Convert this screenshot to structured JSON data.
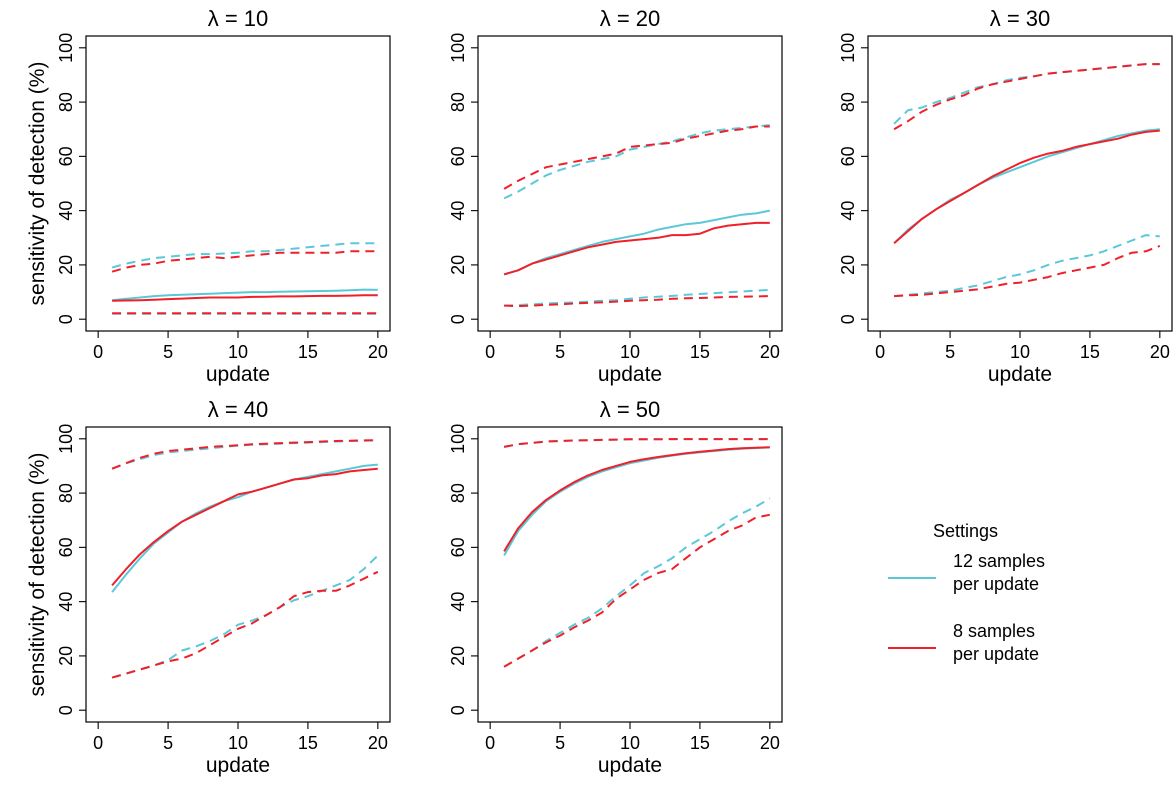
{
  "chart_data": [
    {
      "type": "line",
      "title": "λ = 10",
      "xlabel": "update",
      "ylabel": "sensitivity of detection (%)",
      "xlim": [
        0,
        20
      ],
      "ylim": [
        0,
        100
      ],
      "xticks": [
        0,
        5,
        10,
        15,
        20
      ],
      "yticks": [
        0,
        20,
        40,
        60,
        80,
        100
      ],
      "x": [
        1,
        2,
        3,
        4,
        5,
        6,
        7,
        8,
        9,
        10,
        11,
        12,
        13,
        14,
        15,
        16,
        17,
        18,
        19,
        20
      ],
      "series": [
        {
          "group": "12 samples per update",
          "role": "mean",
          "values": [
            7,
            7.5,
            8,
            8.5,
            8.8,
            9,
            9.2,
            9.4,
            9.6,
            9.8,
            10,
            10,
            10.1,
            10.2,
            10.3,
            10.4,
            10.5,
            10.7,
            10.9,
            10.8
          ]
        },
        {
          "group": "12 samples per update",
          "role": "upper",
          "values": [
            19,
            20.5,
            21.5,
            22.5,
            23,
            23.5,
            24,
            24,
            24.2,
            24.5,
            25,
            25,
            25.5,
            26,
            26.5,
            27,
            27.5,
            28,
            28,
            28
          ]
        },
        {
          "group": "12 samples per update",
          "role": "lower",
          "values": [
            2,
            2,
            2,
            2,
            2,
            2,
            2,
            2,
            2,
            2,
            2,
            2,
            2,
            2,
            2,
            2,
            2,
            2,
            2,
            2
          ]
        },
        {
          "group": "8 samples per update",
          "role": "mean",
          "values": [
            6.8,
            6.9,
            7,
            7.2,
            7.4,
            7.6,
            7.8,
            8,
            8,
            8,
            8.2,
            8.3,
            8.4,
            8.4,
            8.5,
            8.6,
            8.6,
            8.7,
            8.8,
            8.8
          ]
        },
        {
          "group": "8 samples per update",
          "role": "upper",
          "values": [
            17.5,
            19,
            20,
            20.5,
            21.5,
            22,
            22.5,
            23,
            22.5,
            23,
            23.5,
            24,
            24.5,
            24.5,
            24.5,
            24.5,
            24.5,
            25,
            25,
            25
          ]
        },
        {
          "group": "8 samples per update",
          "role": "lower",
          "values": [
            2.2,
            2.2,
            2.2,
            2.2,
            2.2,
            2.2,
            2.2,
            2.2,
            2.2,
            2.2,
            2.2,
            2.2,
            2.2,
            2.2,
            2.2,
            2.2,
            2.2,
            2.2,
            2.2,
            2.2
          ]
        }
      ]
    },
    {
      "type": "line",
      "title": "λ = 20",
      "xlabel": "update",
      "ylabel": "",
      "xlim": [
        0,
        20
      ],
      "ylim": [
        0,
        100
      ],
      "xticks": [
        0,
        5,
        10,
        15,
        20
      ],
      "yticks": [
        0,
        20,
        40,
        60,
        80,
        100
      ],
      "x": [
        1,
        2,
        3,
        4,
        5,
        6,
        7,
        8,
        9,
        10,
        11,
        12,
        13,
        14,
        15,
        16,
        17,
        18,
        19,
        20
      ],
      "series": [
        {
          "group": "12 samples per update",
          "role": "mean",
          "values": [
            16.5,
            18,
            20.5,
            22.5,
            24,
            25.5,
            27,
            28.5,
            29.5,
            30.5,
            31.5,
            33,
            34,
            35,
            35.5,
            36.5,
            37.5,
            38.5,
            39,
            40
          ]
        },
        {
          "group": "12 samples per update",
          "role": "upper",
          "values": [
            44.5,
            47,
            50,
            53,
            55,
            56.5,
            58,
            59,
            60,
            62.5,
            63.5,
            64.5,
            65.5,
            67,
            68.5,
            69.5,
            70,
            70.5,
            71,
            71.5
          ]
        },
        {
          "group": "12 samples per update",
          "role": "lower",
          "values": [
            5,
            5.2,
            5.5,
            5.8,
            6,
            6.2,
            6.5,
            6.8,
            7,
            7.5,
            8,
            8.3,
            8.6,
            9,
            9.3,
            9.6,
            9.9,
            10.2,
            10.5,
            10.8
          ]
        },
        {
          "group": "8 samples per update",
          "role": "mean",
          "values": [
            16.5,
            18,
            20.5,
            22,
            23.5,
            25,
            26.5,
            27.5,
            28.5,
            29,
            29.5,
            30,
            31,
            31,
            31.5,
            33.5,
            34.5,
            35,
            35.5,
            35.5
          ]
        },
        {
          "group": "8 samples per update",
          "role": "upper",
          "values": [
            48,
            51,
            53.5,
            56,
            57,
            58,
            59,
            60,
            61,
            63.5,
            64,
            64.5,
            65,
            66.5,
            67.5,
            68.5,
            69.5,
            70,
            71,
            71
          ]
        },
        {
          "group": "8 samples per update",
          "role": "lower",
          "values": [
            5,
            4.8,
            5,
            5.3,
            5.5,
            5.8,
            6,
            6.2,
            6.5,
            6.8,
            7,
            7.2,
            7.5,
            7.7,
            7.8,
            8,
            8.2,
            8.3,
            8.4,
            8.5
          ]
        }
      ]
    },
    {
      "type": "line",
      "title": "λ = 30",
      "xlabel": "update",
      "ylabel": "",
      "xlim": [
        0,
        20
      ],
      "ylim": [
        0,
        100
      ],
      "xticks": [
        0,
        5,
        10,
        15,
        20
      ],
      "yticks": [
        0,
        20,
        40,
        60,
        80,
        100
      ],
      "x": [
        1,
        2,
        3,
        4,
        5,
        6,
        7,
        8,
        9,
        10,
        11,
        12,
        13,
        14,
        15,
        16,
        17,
        18,
        19,
        20
      ],
      "series": [
        {
          "group": "12 samples per update",
          "role": "mean",
          "values": [
            28,
            33,
            37,
            40.5,
            44,
            46.5,
            49.5,
            52,
            54,
            56,
            58,
            60,
            61.5,
            63,
            64.5,
            66,
            67.5,
            68.5,
            69.5,
            70
          ]
        },
        {
          "group": "12 samples per update",
          "role": "upper",
          "values": [
            72,
            77,
            78,
            80,
            81.5,
            83.5,
            85.5,
            86.5,
            88,
            89,
            89.5,
            90.5,
            91,
            91.5,
            92,
            92.5,
            93,
            93.5,
            94,
            94
          ]
        },
        {
          "group": "12 samples per update",
          "role": "lower",
          "values": [
            8.5,
            9,
            9.5,
            10,
            10.5,
            11.5,
            12.5,
            14,
            15.5,
            16.5,
            18,
            20,
            21.5,
            22.5,
            23.5,
            25,
            27,
            29,
            31,
            30.5
          ]
        },
        {
          "group": "8 samples per update",
          "role": "mean",
          "values": [
            28,
            32.5,
            37,
            40.5,
            43.5,
            46.5,
            49.5,
            52.5,
            55,
            57.5,
            59.5,
            61,
            62,
            63.5,
            64.5,
            65.5,
            66.5,
            68,
            69,
            69.5
          ]
        },
        {
          "group": "8 samples per update",
          "role": "upper",
          "values": [
            70,
            73,
            76.5,
            79,
            81,
            82.5,
            85,
            86.5,
            87.5,
            88.5,
            89.5,
            90.5,
            91,
            91.5,
            92,
            92.5,
            93,
            93.5,
            94,
            94
          ]
        },
        {
          "group": "8 samples per update",
          "role": "lower",
          "values": [
            8.5,
            8.8,
            9,
            9.5,
            10,
            10.5,
            11,
            12,
            13,
            13.5,
            14.5,
            15.5,
            17,
            18,
            19,
            20,
            22.5,
            24.5,
            25,
            27
          ]
        }
      ]
    },
    {
      "type": "line",
      "title": "λ = 40",
      "xlabel": "update",
      "ylabel": "sensitivity of detection (%)",
      "xlim": [
        0,
        20
      ],
      "ylim": [
        0,
        100
      ],
      "xticks": [
        0,
        5,
        10,
        15,
        20
      ],
      "yticks": [
        0,
        20,
        40,
        60,
        80,
        100
      ],
      "x": [
        1,
        2,
        3,
        4,
        5,
        6,
        7,
        8,
        9,
        10,
        11,
        12,
        13,
        14,
        15,
        16,
        17,
        18,
        19,
        20
      ],
      "series": [
        {
          "group": "12 samples per update",
          "role": "mean",
          "values": [
            43.5,
            50,
            56,
            61.5,
            65.5,
            69.5,
            72.5,
            75,
            77,
            78.5,
            80.5,
            82,
            83.5,
            85,
            86,
            87,
            88,
            89,
            90,
            90.5
          ]
        },
        {
          "group": "12 samples per update",
          "role": "upper",
          "values": [
            89,
            91,
            92.5,
            94,
            95,
            95.5,
            96,
            96.5,
            97,
            97.5,
            97.8,
            98,
            98.2,
            98.4,
            98.6,
            98.8,
            99,
            99.2,
            99.3,
            99.4
          ]
        },
        {
          "group": "12 samples per update",
          "role": "lower",
          "values": [
            12,
            13.5,
            15,
            16.5,
            18.5,
            22,
            23.5,
            25.5,
            28,
            31.5,
            33,
            35,
            38,
            40.5,
            42,
            44,
            46,
            48,
            52,
            57
          ]
        },
        {
          "group": "8 samples per update",
          "role": "mean",
          "values": [
            46,
            52,
            57.5,
            62,
            66,
            69.5,
            72,
            74.5,
            77,
            79.5,
            80.5,
            82,
            83.5,
            85,
            85.5,
            86.5,
            87,
            88,
            88.5,
            89
          ]
        },
        {
          "group": "8 samples per update",
          "role": "upper",
          "values": [
            89,
            91,
            93,
            94.5,
            95.5,
            96,
            96.5,
            97,
            97.3,
            97.6,
            98,
            98.2,
            98.4,
            98.6,
            98.8,
            99,
            99.2,
            99.3,
            99.4,
            99.5
          ]
        },
        {
          "group": "8 samples per update",
          "role": "lower",
          "values": [
            12,
            13.5,
            15,
            16.5,
            18,
            19,
            21,
            24,
            27,
            30,
            32,
            35,
            38,
            42,
            43.5,
            44,
            44,
            46,
            48.5,
            51
          ]
        }
      ]
    },
    {
      "type": "line",
      "title": "λ = 50",
      "xlabel": "update",
      "ylabel": "",
      "xlim": [
        0,
        20
      ],
      "ylim": [
        0,
        100
      ],
      "xticks": [
        0,
        5,
        10,
        15,
        20
      ],
      "yticks": [
        0,
        20,
        40,
        60,
        80,
        100
      ],
      "x": [
        1,
        2,
        3,
        4,
        5,
        6,
        7,
        8,
        9,
        10,
        11,
        12,
        13,
        14,
        15,
        16,
        17,
        18,
        19,
        20
      ],
      "series": [
        {
          "group": "12 samples per update",
          "role": "mean",
          "values": [
            57,
            66,
            72,
            77,
            80.5,
            83.5,
            86,
            88,
            89.5,
            91,
            92,
            93,
            93.8,
            94.5,
            95,
            95.5,
            96,
            96.3,
            96.6,
            96.8
          ]
        },
        {
          "group": "12 samples per update",
          "role": "upper",
          "values": [
            97,
            98,
            98.5,
            99,
            99.2,
            99.4,
            99.5,
            99.6,
            99.7,
            99.8,
            99.8,
            99.8,
            99.9,
            99.9,
            99.9,
            99.9,
            99.9,
            99.9,
            99.9,
            99.9
          ]
        },
        {
          "group": "12 samples per update",
          "role": "lower",
          "values": [
            16,
            19,
            22,
            25.5,
            28.5,
            31.5,
            34,
            37.5,
            42,
            46,
            50.5,
            53,
            56,
            60,
            63,
            66,
            69.5,
            72.5,
            75,
            78
          ]
        },
        {
          "group": "8 samples per update",
          "role": "mean",
          "values": [
            58.5,
            67,
            73,
            77.5,
            81,
            84,
            86.5,
            88.5,
            90,
            91.5,
            92.5,
            93.3,
            94,
            94.7,
            95.2,
            95.7,
            96.2,
            96.5,
            96.7,
            96.9
          ]
        },
        {
          "group": "8 samples per update",
          "role": "upper",
          "values": [
            97,
            98,
            98.5,
            99,
            99.2,
            99.4,
            99.5,
            99.6,
            99.7,
            99.8,
            99.8,
            99.8,
            99.9,
            99.9,
            99.9,
            99.9,
            99.9,
            99.9,
            99.9,
            99.9
          ]
        },
        {
          "group": "8 samples per update",
          "role": "lower",
          "values": [
            16,
            19,
            22,
            25,
            27.5,
            30.5,
            33,
            36,
            41,
            44.5,
            48,
            50.5,
            52,
            56,
            60,
            63,
            66,
            68,
            71,
            72
          ]
        }
      ]
    }
  ],
  "legend": {
    "title": "Settings",
    "items": [
      {
        "line1": "12 samples",
        "line2": "per update",
        "color": "#5bc8d8"
      },
      {
        "line1": "8 samples",
        "line2": "per update",
        "color": "#f0202a"
      }
    ]
  }
}
